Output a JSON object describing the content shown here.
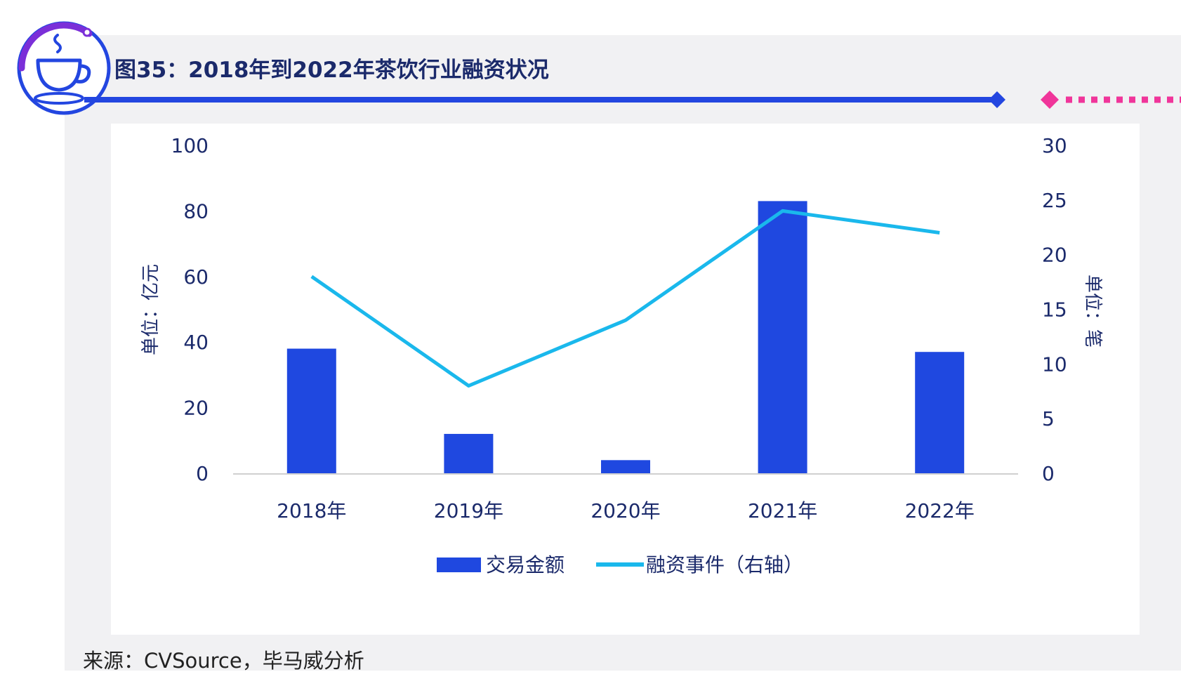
{
  "figure": {
    "title": "图35：2018年到2022年茶饮行业融资状况",
    "source": "来源：CVSource，毕马威分析"
  },
  "colors": {
    "bar": "#1f48e0",
    "line": "#1ab8ec",
    "title_rule": "#2346e0",
    "accent_pink": "#f0359a",
    "text": "#1b2a6b",
    "logo_ring": "#7b2fd8"
  },
  "icons": {
    "logo": "teacup-icon"
  },
  "chart_data": {
    "type": "bar",
    "categories": [
      "2018年",
      "2019年",
      "2020年",
      "2021年",
      "2022年"
    ],
    "series": [
      {
        "name": "交易金额",
        "type": "bar",
        "axis": "left",
        "values": [
          38,
          12,
          4,
          83,
          37
        ]
      },
      {
        "name": "融资事件（右轴）",
        "type": "line",
        "axis": "right",
        "values": [
          18,
          8,
          14,
          24,
          22
        ]
      }
    ],
    "left_axis": {
      "label": "单位：亿元",
      "ylim": [
        0,
        100
      ],
      "ticks": [
        "0",
        "20",
        "40",
        "60",
        "80",
        "100"
      ]
    },
    "right_axis": {
      "label": "单位：笔",
      "ylim": [
        0,
        30
      ],
      "ticks": [
        "0",
        "5",
        "10",
        "15",
        "20",
        "25",
        "30"
      ]
    },
    "grid": false,
    "legend": "bottom"
  }
}
